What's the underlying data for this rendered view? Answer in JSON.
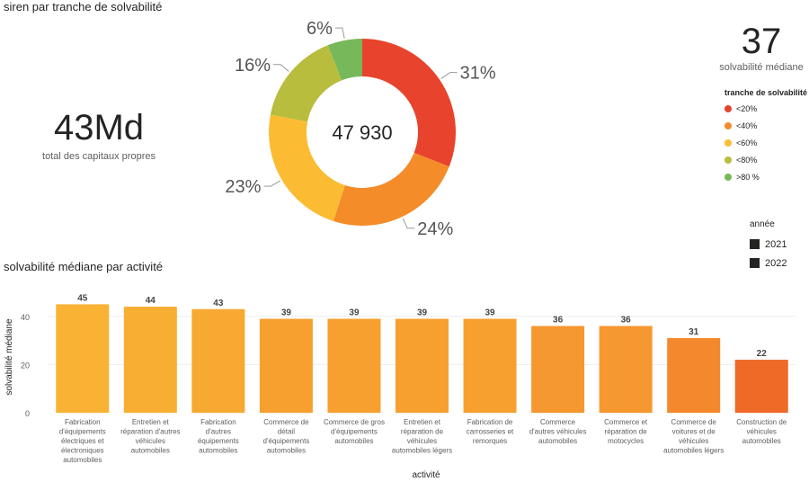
{
  "donut": {
    "title": "siren par tranche de solvabilité",
    "center": "47 930",
    "legend_title": "tranche de solvabilité",
    "slices": [
      {
        "label": "<20%",
        "pct": 31,
        "text": "31%",
        "color": "#E8432D"
      },
      {
        "label": "<40%",
        "pct": 24,
        "text": "24%",
        "color": "#F48C2A"
      },
      {
        "label": "<60%",
        "pct": 23,
        "text": "23%",
        "color": "#FBBC33"
      },
      {
        "label": "<80%",
        "pct": 16,
        "text": "16%",
        "color": "#B8BD3D"
      },
      {
        "label": ">80 %",
        "pct": 6,
        "text": "6%",
        "color": "#77B85A"
      }
    ]
  },
  "kpi_left": {
    "value": "43Md",
    "label": "total des capitaux propres"
  },
  "kpi_right": {
    "value": "37",
    "label": "solvabilité médiane"
  },
  "years": {
    "title": "année",
    "items": [
      "2021",
      "2022"
    ]
  },
  "chart_data": {
    "type": "bar",
    "title": "solvabilité médiane par activité",
    "xlabel": "activité",
    "ylabel": "solvabilité médiane",
    "ylim": [
      0,
      50
    ],
    "yticks": [
      0,
      20,
      40
    ],
    "categories": [
      "Fabrication d'équipements électriques et électroniques automobiles",
      "Entretien et réparation d'autres véhicules automobiles",
      "Fabrication d'autres équipements automobiles",
      "Commerce de détail d'équipements automobiles",
      "Commerce de gros d'équipements automobiles",
      "Entretien et réparation de véhicules automobiles légers",
      "Fabrication de carrosseries et remorques",
      "Commerce d'autres véhicules automobiles",
      "Commerce et réparation de motocycles",
      "Commerce de voitures et de véhicules automobiles légers",
      "Construction de véhicules automobiles"
    ],
    "label_lines": [
      [
        "Fabrication",
        "d'équipements",
        "électriques et",
        "électroniques",
        "automobiles"
      ],
      [
        "Entretien et",
        "réparation d'autres",
        "véhicules",
        "automobiles"
      ],
      [
        "Fabrication",
        "d'autres",
        "équipements",
        "automobiles"
      ],
      [
        "Commerce de",
        "détail",
        "d'équipements",
        "automobiles"
      ],
      [
        "Commerce de gros",
        "d'équipements",
        "automobiles"
      ],
      [
        "Entretien et",
        "réparation de",
        "véhicules",
        "automobiles légers"
      ],
      [
        "Fabrication de",
        "carrosseries et",
        "remorques"
      ],
      [
        "Commerce",
        "d'autres véhicules",
        "automobiles"
      ],
      [
        "Commerce et",
        "réparation de",
        "motocycles"
      ],
      [
        "Commerce de",
        "voitures et de",
        "véhicules",
        "automobiles légers"
      ],
      [
        "Construction de",
        "véhicules",
        "automobiles"
      ]
    ],
    "values": [
      45,
      44,
      43,
      39,
      39,
      39,
      39,
      36,
      36,
      31,
      22
    ],
    "colors": [
      "#F9B233",
      "#F8AE32",
      "#F8A931",
      "#F7A030",
      "#F7A030",
      "#F7A030",
      "#F7A030",
      "#F69830",
      "#F69830",
      "#F4882C",
      "#EE6A26"
    ]
  }
}
